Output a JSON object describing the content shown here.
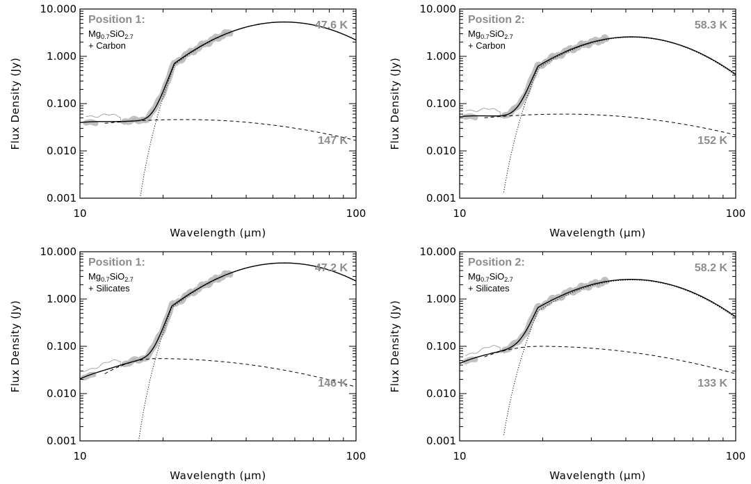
{
  "chart_data": [
    {
      "type": "line",
      "panel_label": "Position 1:",
      "composition": [
        "Mg",
        "0.7",
        "SiO",
        "2.7"
      ],
      "composition_line2": "+ Carbon",
      "xlabel": "Wavelength (μm)",
      "ylabel": "Flux Density (Jy)",
      "xscale": "log",
      "yscale": "log",
      "xlim": [
        10,
        100
      ],
      "ylim": [
        0.001,
        10
      ],
      "xticks": [
        "10",
        "100"
      ],
      "yticks": [
        "0.001",
        "0.010",
        "0.100",
        "1.000",
        "10.000"
      ],
      "cold_temp_label": "47.6 K",
      "warm_temp_label": "147 K",
      "cold": {
        "peak_x": 55,
        "peak_y": 2.3,
        "cutoff_x": 14.8,
        "edge_x": 22,
        "step_ratio": 2.3
      },
      "warm": {
        "peak_x": 24,
        "peak_y": 0.046,
        "a": 0.9,
        "b": 1.0
      },
      "low_level": 0.006,
      "spectrum_range": [
        10.5,
        35
      ],
      "series": [
        {
          "style": "observed spectrum (thick grey band)",
          "x": [
            10.5,
            11,
            12,
            13,
            14,
            15,
            16,
            17,
            18,
            19,
            20,
            21,
            22,
            25,
            28,
            30,
            33,
            35
          ],
          "y": [
            0.008,
            0.011,
            0.018,
            0.022,
            0.026,
            0.033,
            0.06,
            0.1,
            0.25,
            0.5,
            0.6,
            0.62,
            0.62,
            0.66,
            0.74,
            0.85,
            1.05,
            1.25
          ]
        },
        {
          "style": "total model (solid)",
          "x": [
            10,
            12,
            14,
            16,
            18,
            20,
            22,
            25,
            30,
            40,
            55,
            70,
            100
          ],
          "y": [
            0.006,
            0.016,
            0.026,
            0.045,
            0.2,
            0.55,
            0.62,
            0.66,
            0.84,
            1.6,
            2.3,
            2.2,
            1.35
          ]
        },
        {
          "style": "cold component (dotted)",
          "x": [
            14.8,
            16,
            18,
            20,
            22,
            25,
            30,
            40,
            55,
            70,
            100
          ],
          "y": [
            0.001,
            0.01,
            0.12,
            0.45,
            0.57,
            0.62,
            0.8,
            1.6,
            2.3,
            2.2,
            1.35
          ]
        },
        {
          "style": "warm component (dashed)",
          "x": [
            12,
            14,
            16,
            20,
            24,
            30,
            40,
            60,
            80,
            100
          ],
          "y": [
            0.022,
            0.03,
            0.038,
            0.045,
            0.046,
            0.043,
            0.033,
            0.018,
            0.01,
            0.006
          ]
        }
      ]
    },
    {
      "type": "line",
      "panel_label": "Position 2:",
      "composition": [
        "Mg",
        "0.7",
        "SiO",
        "2.7"
      ],
      "composition_line2": "+ Carbon",
      "xlabel": "Wavelength (μm)",
      "ylabel": "Flux Density (Jy)",
      "xscale": "log",
      "yscale": "log",
      "xlim": [
        10,
        100
      ],
      "ylim": [
        0.001,
        10
      ],
      "xticks": [
        "10",
        "100"
      ],
      "yticks": [
        "0.001",
        "0.010",
        "0.100",
        "1.000",
        "10.000"
      ],
      "cold_temp_label": "58.3 K",
      "warm_temp_label": "152 K",
      "cold": {
        "peak_x": 42,
        "peak_y": 2.2,
        "cutoff_x": 12.8,
        "edge_x": 19.2,
        "step_ratio": 1.15
      },
      "warm": {
        "peak_x": 24,
        "peak_y": 0.06,
        "a": 0.9,
        "b": 1.0
      },
      "low_level": 0.009,
      "spectrum_range": [
        10.5,
        34
      ],
      "series": [
        {
          "style": "observed spectrum (thick grey band)",
          "x": [
            10.5,
            11,
            12,
            13,
            14,
            15,
            16,
            17,
            18,
            19,
            20,
            21,
            22,
            25,
            30,
            34
          ],
          "y": [
            0.011,
            0.013,
            0.025,
            0.03,
            0.035,
            0.06,
            0.1,
            0.2,
            0.6,
            1.5,
            2.5,
            2.4,
            2.0,
            1.9,
            2.0,
            2.1
          ]
        },
        {
          "style": "total model (solid)",
          "x": [
            10,
            12,
            14,
            16,
            18,
            20,
            21,
            22,
            25,
            30,
            42,
            60,
            100
          ],
          "y": [
            0.01,
            0.018,
            0.03,
            0.08,
            0.5,
            2.0,
            2.4,
            2.1,
            1.85,
            1.95,
            2.2,
            1.9,
            0.75
          ]
        },
        {
          "style": "cold component (dotted)",
          "x": [
            12.8,
            14,
            16,
            18,
            20,
            22,
            25,
            30,
            42,
            60,
            100
          ],
          "y": [
            0.001,
            0.008,
            0.07,
            0.45,
            1.9,
            2.05,
            1.82,
            1.9,
            2.2,
            1.9,
            0.75
          ]
        },
        {
          "style": "warm component (dashed)",
          "x": [
            12,
            14,
            16,
            20,
            24,
            30,
            40,
            60,
            80,
            100
          ],
          "y": [
            0.027,
            0.036,
            0.045,
            0.058,
            0.06,
            0.056,
            0.044,
            0.024,
            0.013,
            0.007
          ]
        }
      ]
    },
    {
      "type": "line",
      "panel_label": "Position 1:",
      "composition": [
        "Mg",
        "0.7",
        "SiO",
        "2.7"
      ],
      "composition_line2": "+ Silicates",
      "xlabel": "Wavelength (μm)",
      "ylabel": "Flux Density (Jy)",
      "xscale": "log",
      "yscale": "log",
      "xlim": [
        10,
        100
      ],
      "ylim": [
        0.001,
        10
      ],
      "xticks": [
        "10",
        "100"
      ],
      "yticks": [
        "0.001",
        "0.010",
        "0.100",
        "1.000",
        "10.000"
      ],
      "cold_temp_label": "47.2 K",
      "warm_temp_label": "146 K",
      "cold": {
        "peak_x": 55,
        "peak_y": 2.4,
        "cutoff_x": 14.7,
        "edge_x": 21.5,
        "step_ratio": 2.4
      },
      "warm": {
        "peak_x": 19,
        "peak_y": 0.055,
        "a": 2.8,
        "b": 1.0
      },
      "low_level": 0.0095,
      "spectrum_range": [
        10.3,
        35
      ],
      "series": [
        {
          "style": "observed spectrum (thick grey band)",
          "x": [
            10.3,
            10.6,
            11,
            12,
            13,
            14,
            15,
            16,
            17,
            18,
            19,
            20,
            21,
            22,
            25,
            28,
            30,
            35
          ],
          "y": [
            0.005,
            0.007,
            0.02,
            0.022,
            0.022,
            0.024,
            0.035,
            0.06,
            0.1,
            0.22,
            0.45,
            0.58,
            0.6,
            0.6,
            0.66,
            0.76,
            0.9,
            1.3
          ]
        },
        {
          "style": "total model (solid)",
          "x": [
            10,
            11,
            12,
            13,
            14,
            16,
            18,
            20,
            22,
            25,
            30,
            40,
            55,
            70,
            100
          ],
          "y": [
            0.009,
            0.011,
            0.011,
            0.012,
            0.018,
            0.06,
            0.25,
            0.55,
            0.6,
            0.65,
            0.84,
            1.6,
            2.4,
            2.3,
            1.4
          ]
        },
        {
          "style": "cold component (dotted)",
          "x": [
            14.7,
            16,
            18,
            20,
            22,
            25,
            30,
            40,
            55,
            70,
            100
          ],
          "y": [
            0.001,
            0.012,
            0.15,
            0.45,
            0.55,
            0.62,
            0.8,
            1.6,
            2.4,
            2.3,
            1.4
          ]
        },
        {
          "style": "warm component (dashed)",
          "x": [
            14,
            15,
            16,
            17,
            19,
            22,
            30,
            40,
            60,
            80,
            100
          ],
          "y": [
            0.018,
            0.024,
            0.033,
            0.044,
            0.055,
            0.05,
            0.03,
            0.014,
            0.004,
            0.0018,
            0.001
          ]
        }
      ]
    },
    {
      "type": "line",
      "panel_label": "Position 2:",
      "composition": [
        "Mg",
        "0.7",
        "SiO",
        "2.7"
      ],
      "composition_line2": "+ Silicates",
      "xlabel": "Wavelength (μm)",
      "ylabel": "Flux Density (Jy)",
      "xscale": "log",
      "yscale": "log",
      "xlim": [
        10,
        100
      ],
      "ylim": [
        0.001,
        10
      ],
      "xticks": [
        "10",
        "100"
      ],
      "yticks": [
        "0.001",
        "0.010",
        "0.100",
        "1.000",
        "10.000"
      ],
      "cold_temp_label": "58.2 K",
      "warm_temp_label": "133 K",
      "cold": {
        "peak_x": 42,
        "peak_y": 2.2,
        "cutoff_x": 12.8,
        "edge_x": 19.2,
        "step_ratio": 1.15
      },
      "warm": {
        "peak_x": 19.5,
        "peak_y": 0.1,
        "a": 2.2,
        "b": 1.0
      },
      "low_level": 0.0095,
      "spectrum_range": [
        10.5,
        34
      ],
      "series": [
        {
          "style": "observed spectrum (thick grey band)",
          "x": [
            10.5,
            11,
            12,
            13,
            14,
            15,
            16,
            17,
            18,
            19,
            20,
            21,
            22,
            25,
            30,
            34
          ],
          "y": [
            0.009,
            0.012,
            0.016,
            0.02,
            0.025,
            0.05,
            0.12,
            0.3,
            0.8,
            1.9,
            2.6,
            2.4,
            2.0,
            1.9,
            2.0,
            2.1
          ]
        },
        {
          "style": "total model (solid)",
          "x": [
            10,
            11,
            12,
            13,
            14,
            16,
            18,
            20,
            22,
            25,
            30,
            42,
            60,
            100
          ],
          "y": [
            0.0095,
            0.013,
            0.015,
            0.016,
            0.02,
            0.09,
            0.5,
            2.0,
            2.1,
            1.85,
            1.95,
            2.2,
            1.9,
            0.75
          ]
        },
        {
          "style": "cold component (dotted)",
          "x": [
            12.8,
            14,
            16,
            18,
            20,
            22,
            25,
            30,
            42,
            60,
            100
          ],
          "y": [
            0.001,
            0.008,
            0.07,
            0.45,
            1.9,
            2.05,
            1.82,
            1.9,
            2.2,
            1.9,
            0.75
          ]
        },
        {
          "style": "warm component (dashed)",
          "x": [
            13,
            14,
            15,
            16,
            17,
            19.5,
            22,
            30,
            40,
            60,
            80,
            100
          ],
          "y": [
            0.015,
            0.022,
            0.035,
            0.052,
            0.075,
            0.1,
            0.095,
            0.06,
            0.03,
            0.01,
            0.0055,
            0.003
          ]
        }
      ]
    }
  ]
}
